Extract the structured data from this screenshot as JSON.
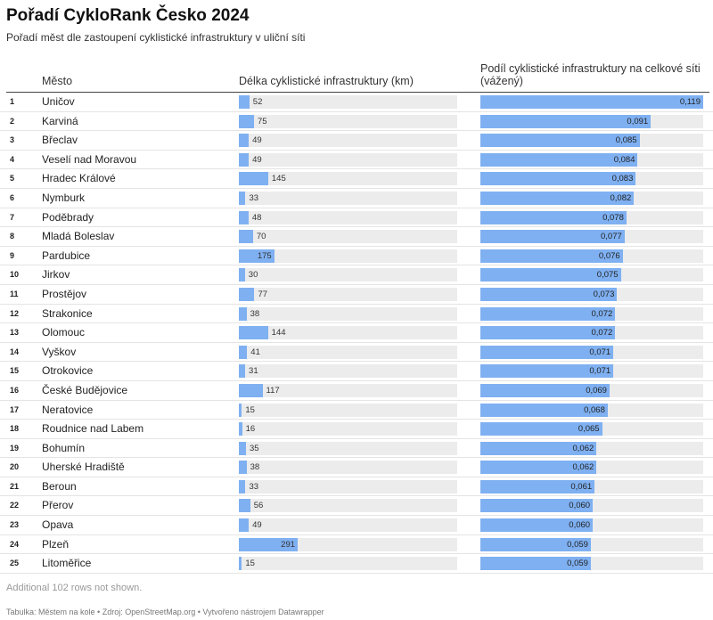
{
  "header": {
    "title": "Pořadí CykloRank Česko 2024",
    "subtitle": "Pořadí měst dle zastoupení cyklistické infrastruktury v uliční síti"
  },
  "columns": {
    "city": "Město",
    "length": "Délka cyklistické infrastruktury (km)",
    "share": "Podíl cyklistické infrastruktury na celkové síti (vážený)"
  },
  "colors": {
    "bar": "#7fb0f1",
    "track": "#ececec"
  },
  "chart_data": {
    "type": "table",
    "length_axis_max": 1080,
    "share_axis_max": 0.119,
    "rows": [
      {
        "rank": "1",
        "city": "Uničov",
        "length": 52,
        "share": "0,119",
        "share_value": 0.119
      },
      {
        "rank": "2",
        "city": "Karviná",
        "length": 75,
        "share": "0,091",
        "share_value": 0.091
      },
      {
        "rank": "3",
        "city": "Břeclav",
        "length": 49,
        "share": "0,085",
        "share_value": 0.085
      },
      {
        "rank": "4",
        "city": "Veselí nad Moravou",
        "length": 49,
        "share": "0,084",
        "share_value": 0.084
      },
      {
        "rank": "5",
        "city": "Hradec Králové",
        "length": 145,
        "share": "0,083",
        "share_value": 0.083
      },
      {
        "rank": "6",
        "city": "Nymburk",
        "length": 33,
        "share": "0,082",
        "share_value": 0.082
      },
      {
        "rank": "7",
        "city": "Poděbrady",
        "length": 48,
        "share": "0,078",
        "share_value": 0.078
      },
      {
        "rank": "8",
        "city": "Mladá Boleslav",
        "length": 70,
        "share": "0,077",
        "share_value": 0.077
      },
      {
        "rank": "9",
        "city": "Pardubice",
        "length": 175,
        "share": "0,076",
        "share_value": 0.076
      },
      {
        "rank": "10",
        "city": "Jirkov",
        "length": 30,
        "share": "0,075",
        "share_value": 0.075
      },
      {
        "rank": "11",
        "city": "Prostějov",
        "length": 77,
        "share": "0,073",
        "share_value": 0.073
      },
      {
        "rank": "12",
        "city": "Strakonice",
        "length": 38,
        "share": "0,072",
        "share_value": 0.072
      },
      {
        "rank": "13",
        "city": "Olomouc",
        "length": 144,
        "share": "0,072",
        "share_value": 0.072
      },
      {
        "rank": "14",
        "city": "Vyškov",
        "length": 41,
        "share": "0,071",
        "share_value": 0.071
      },
      {
        "rank": "15",
        "city": "Otrokovice",
        "length": 31,
        "share": "0,071",
        "share_value": 0.071
      },
      {
        "rank": "16",
        "city": "České Budějovice",
        "length": 117,
        "share": "0,069",
        "share_value": 0.069
      },
      {
        "rank": "17",
        "city": "Neratovice",
        "length": 15,
        "share": "0,068",
        "share_value": 0.068
      },
      {
        "rank": "18",
        "city": "Roudnice nad Labem",
        "length": 16,
        "share": "0,065",
        "share_value": 0.065
      },
      {
        "rank": "19",
        "city": "Bohumín",
        "length": 35,
        "share": "0,062",
        "share_value": 0.062
      },
      {
        "rank": "20",
        "city": "Uherské Hradiště",
        "length": 38,
        "share": "0,062",
        "share_value": 0.062
      },
      {
        "rank": "21",
        "city": "Beroun",
        "length": 33,
        "share": "0,061",
        "share_value": 0.061
      },
      {
        "rank": "22",
        "city": "Přerov",
        "length": 56,
        "share": "0,060",
        "share_value": 0.06
      },
      {
        "rank": "23",
        "city": "Opava",
        "length": 49,
        "share": "0,060",
        "share_value": 0.06
      },
      {
        "rank": "24",
        "city": "Plzeň",
        "length": 291,
        "share": "0,059",
        "share_value": 0.059
      },
      {
        "rank": "25",
        "city": "Litoměřice",
        "length": 15,
        "share": "0,059",
        "share_value": 0.059
      }
    ]
  },
  "note": "Additional 102 rows not shown.",
  "footer": "Tabulka: Městem na kole • Zdroj: OpenStreetMap.org • Vytvořeno nástrojem Datawrapper"
}
